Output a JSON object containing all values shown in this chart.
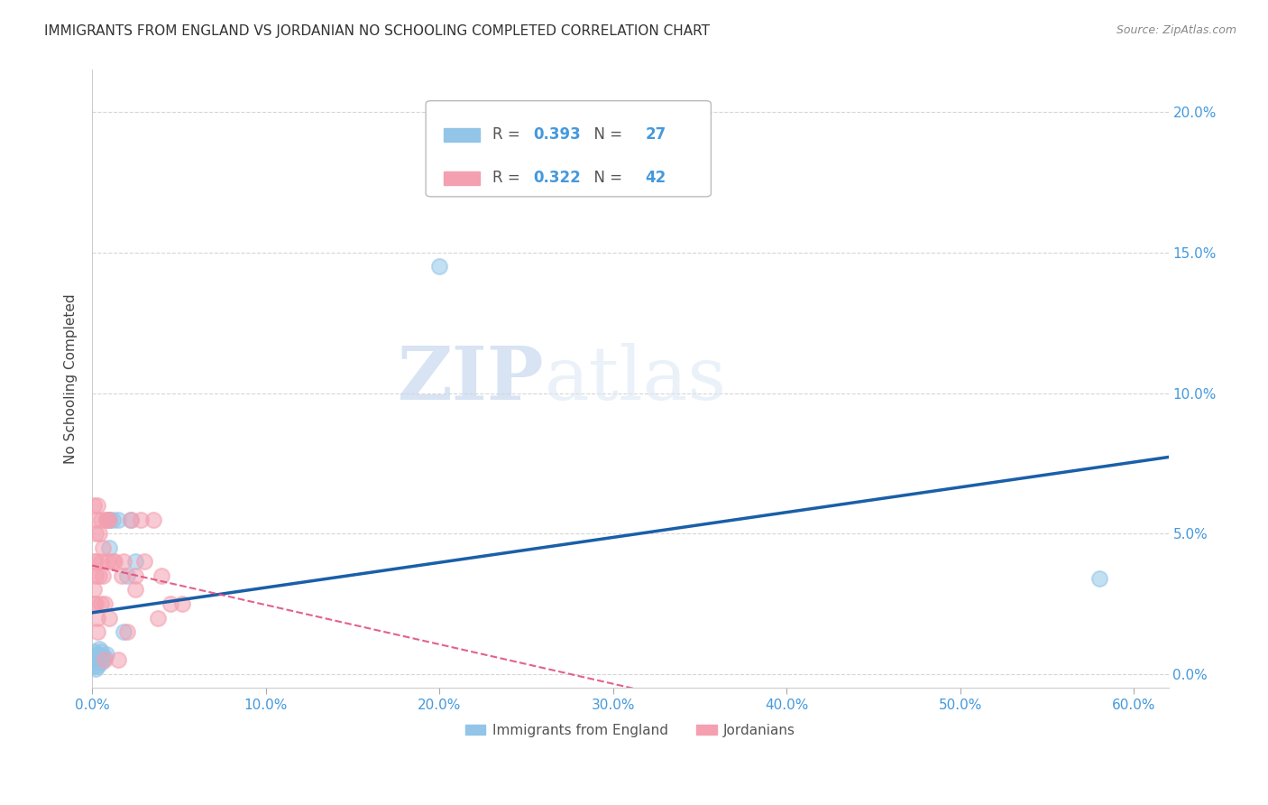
{
  "title": "IMMIGRANTS FROM ENGLAND VS JORDANIAN NO SCHOOLING COMPLETED CORRELATION CHART",
  "source": "Source: ZipAtlas.com",
  "ylabel": "No Schooling Completed",
  "xlim": [
    0.0,
    0.62
  ],
  "ylim": [
    -0.005,
    0.215
  ],
  "england_x": [
    0.001,
    0.001,
    0.001,
    0.002,
    0.002,
    0.002,
    0.003,
    0.003,
    0.003,
    0.004,
    0.004,
    0.005,
    0.005,
    0.006,
    0.007,
    0.008,
    0.009,
    0.01,
    0.01,
    0.012,
    0.015,
    0.018,
    0.02,
    0.022,
    0.025,
    0.2,
    0.58
  ],
  "england_y": [
    0.005,
    0.003,
    0.008,
    0.004,
    0.006,
    0.002,
    0.005,
    0.007,
    0.003,
    0.006,
    0.009,
    0.004,
    0.008,
    0.005,
    0.006,
    0.007,
    0.055,
    0.055,
    0.045,
    0.055,
    0.055,
    0.015,
    0.035,
    0.055,
    0.04,
    0.145,
    0.034
  ],
  "jordan_x": [
    0.001,
    0.001,
    0.001,
    0.001,
    0.002,
    0.002,
    0.002,
    0.002,
    0.003,
    0.003,
    0.003,
    0.003,
    0.004,
    0.004,
    0.005,
    0.005,
    0.005,
    0.006,
    0.006,
    0.007,
    0.007,
    0.008,
    0.008,
    0.009,
    0.01,
    0.01,
    0.012,
    0.013,
    0.015,
    0.017,
    0.018,
    0.02,
    0.022,
    0.025,
    0.025,
    0.028,
    0.03,
    0.035,
    0.038,
    0.04,
    0.045,
    0.052
  ],
  "jordan_y": [
    0.04,
    0.03,
    0.025,
    0.06,
    0.05,
    0.04,
    0.035,
    0.025,
    0.06,
    0.055,
    0.02,
    0.015,
    0.05,
    0.035,
    0.055,
    0.04,
    0.025,
    0.045,
    0.035,
    0.005,
    0.025,
    0.055,
    0.055,
    0.04,
    0.055,
    0.02,
    0.04,
    0.04,
    0.005,
    0.035,
    0.04,
    0.015,
    0.055,
    0.035,
    0.03,
    0.055,
    0.04,
    0.055,
    0.02,
    0.035,
    0.025,
    0.025
  ],
  "england_color": "#92C5E8",
  "jordan_color": "#F4A0B0",
  "england_line_color": "#1A5FA8",
  "jordan_line_color": "#E05080",
  "england_R": 0.393,
  "england_N": 27,
  "jordan_R": 0.322,
  "jordan_N": 42,
  "legend_label_england": "Immigrants from England",
  "legend_label_jordan": "Jordanians",
  "watermark_zip": "ZIP",
  "watermark_atlas": "atlas",
  "background_color": "#ffffff",
  "title_fontsize": 11,
  "axis_color": "#4499DD",
  "grid_color": "#cccccc"
}
